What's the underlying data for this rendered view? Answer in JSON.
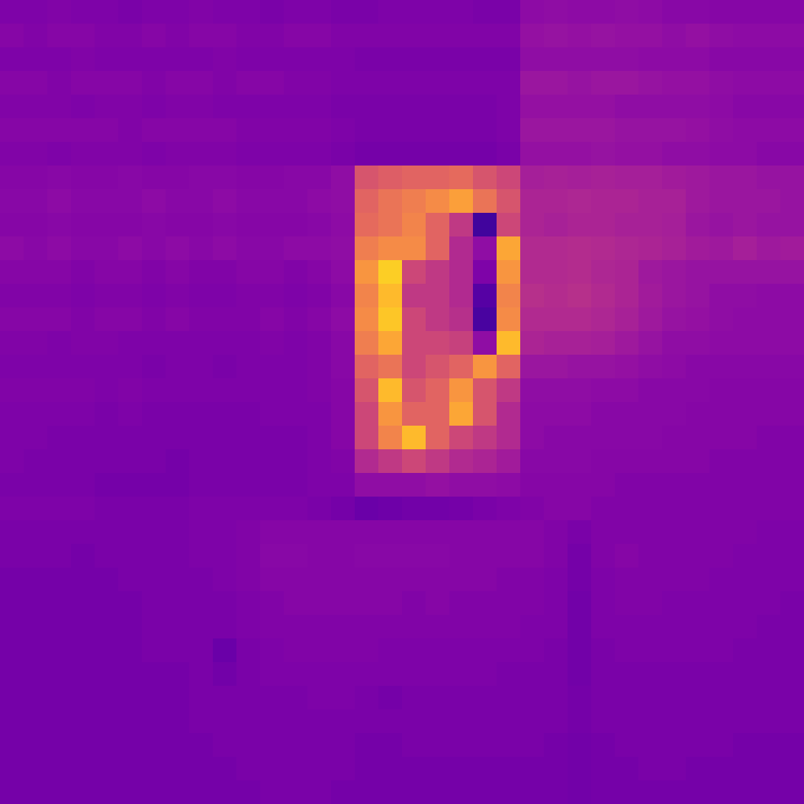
{
  "chart_data": {
    "type": "heatmap",
    "color": "plasma",
    "tick_labels": false,
    "zlim": [
      0,
      1
    ],
    "cells": [
      [
        0.25,
        0.25,
        0.26,
        0.25,
        0.25,
        0.24,
        0.25,
        0.25,
        0.26,
        0.25,
        0.25,
        0.24,
        0.25,
        0.25,
        0.24,
        0.24,
        0.25,
        0.25,
        0.25,
        0.25,
        0.24,
        0.24,
        0.29,
        0.3,
        0.29,
        0.29,
        0.3,
        0.29,
        0.28,
        0.28,
        0.27,
        0.27,
        0.27,
        0.27
      ],
      [
        0.27,
        0.26,
        0.27,
        0.27,
        0.26,
        0.26,
        0.27,
        0.26,
        0.27,
        0.27,
        0.26,
        0.26,
        0.27,
        0.27,
        0.26,
        0.26,
        0.26,
        0.26,
        0.26,
        0.26,
        0.26,
        0.26,
        0.31,
        0.32,
        0.31,
        0.32,
        0.31,
        0.31,
        0.3,
        0.31,
        0.3,
        0.29,
        0.29,
        0.29
      ],
      [
        0.25,
        0.25,
        0.25,
        0.26,
        0.25,
        0.25,
        0.25,
        0.25,
        0.25,
        0.26,
        0.25,
        0.25,
        0.25,
        0.25,
        0.25,
        0.24,
        0.24,
        0.24,
        0.24,
        0.24,
        0.24,
        0.24,
        0.3,
        0.3,
        0.3,
        0.3,
        0.3,
        0.29,
        0.29,
        0.29,
        0.28,
        0.28,
        0.28,
        0.28
      ],
      [
        0.27,
        0.27,
        0.26,
        0.27,
        0.27,
        0.27,
        0.26,
        0.27,
        0.27,
        0.26,
        0.27,
        0.27,
        0.26,
        0.26,
        0.25,
        0.25,
        0.25,
        0.25,
        0.25,
        0.25,
        0.25,
        0.25,
        0.33,
        0.33,
        0.32,
        0.33,
        0.33,
        0.32,
        0.31,
        0.31,
        0.3,
        0.29,
        0.29,
        0.29
      ],
      [
        0.26,
        0.26,
        0.26,
        0.25,
        0.26,
        0.26,
        0.25,
        0.26,
        0.26,
        0.25,
        0.25,
        0.25,
        0.25,
        0.25,
        0.24,
        0.24,
        0.24,
        0.24,
        0.24,
        0.24,
        0.24,
        0.25,
        0.31,
        0.31,
        0.31,
        0.31,
        0.3,
        0.3,
        0.3,
        0.3,
        0.29,
        0.28,
        0.28,
        0.28
      ],
      [
        0.27,
        0.27,
        0.27,
        0.27,
        0.27,
        0.26,
        0.27,
        0.27,
        0.27,
        0.27,
        0.26,
        0.26,
        0.26,
        0.26,
        0.25,
        0.24,
        0.24,
        0.24,
        0.24,
        0.24,
        0.24,
        0.25,
        0.33,
        0.33,
        0.33,
        0.33,
        0.32,
        0.32,
        0.32,
        0.31,
        0.3,
        0.29,
        0.29,
        0.29
      ],
      [
        0.26,
        0.26,
        0.25,
        0.26,
        0.26,
        0.26,
        0.25,
        0.26,
        0.26,
        0.26,
        0.25,
        0.25,
        0.25,
        0.25,
        0.24,
        0.23,
        0.23,
        0.23,
        0.23,
        0.23,
        0.23,
        0.24,
        0.31,
        0.31,
        0.31,
        0.32,
        0.31,
        0.31,
        0.3,
        0.3,
        0.29,
        0.29,
        0.28,
        0.28
      ],
      [
        0.27,
        0.27,
        0.28,
        0.27,
        0.27,
        0.28,
        0.27,
        0.27,
        0.28,
        0.28,
        0.27,
        0.27,
        0.28,
        0.28,
        0.3,
        0.55,
        0.58,
        0.6,
        0.6,
        0.62,
        0.55,
        0.5,
        0.36,
        0.37,
        0.36,
        0.37,
        0.36,
        0.36,
        0.35,
        0.34,
        0.33,
        0.33,
        0.32,
        0.32
      ],
      [
        0.28,
        0.28,
        0.29,
        0.28,
        0.28,
        0.28,
        0.29,
        0.28,
        0.28,
        0.29,
        0.28,
        0.28,
        0.28,
        0.29,
        0.3,
        0.6,
        0.65,
        0.68,
        0.72,
        0.78,
        0.65,
        0.55,
        0.38,
        0.38,
        0.39,
        0.38,
        0.38,
        0.37,
        0.37,
        0.34,
        0.33,
        0.33,
        0.33,
        0.32
      ],
      [
        0.27,
        0.27,
        0.28,
        0.27,
        0.27,
        0.27,
        0.28,
        0.27,
        0.27,
        0.28,
        0.27,
        0.27,
        0.27,
        0.28,
        0.29,
        0.62,
        0.65,
        0.7,
        0.6,
        0.45,
        0.1,
        0.5,
        0.38,
        0.37,
        0.38,
        0.38,
        0.37,
        0.37,
        0.36,
        0.33,
        0.32,
        0.33,
        0.32,
        0.32
      ],
      [
        0.29,
        0.28,
        0.29,
        0.28,
        0.28,
        0.29,
        0.28,
        0.29,
        0.28,
        0.29,
        0.28,
        0.28,
        0.29,
        0.29,
        0.3,
        0.68,
        0.72,
        0.72,
        0.6,
        0.4,
        0.3,
        0.8,
        0.4,
        0.4,
        0.41,
        0.4,
        0.39,
        0.38,
        0.37,
        0.35,
        0.34,
        0.36,
        0.34,
        0.35
      ],
      [
        0.27,
        0.27,
        0.27,
        0.26,
        0.27,
        0.27,
        0.26,
        0.27,
        0.26,
        0.26,
        0.27,
        0.27,
        0.26,
        0.27,
        0.29,
        0.75,
        0.9,
        0.5,
        0.45,
        0.4,
        0.25,
        0.75,
        0.4,
        0.4,
        0.41,
        0.39,
        0.38,
        0.34,
        0.33,
        0.32,
        0.32,
        0.32,
        0.32,
        0.32
      ],
      [
        0.26,
        0.26,
        0.26,
        0.25,
        0.26,
        0.26,
        0.25,
        0.26,
        0.25,
        0.25,
        0.26,
        0.26,
        0.25,
        0.26,
        0.28,
        0.7,
        0.85,
        0.45,
        0.45,
        0.4,
        0.15,
        0.7,
        0.42,
        0.41,
        0.42,
        0.4,
        0.38,
        0.35,
        0.33,
        0.32,
        0.3,
        0.3,
        0.29,
        0.29
      ],
      [
        0.27,
        0.27,
        0.27,
        0.26,
        0.27,
        0.27,
        0.26,
        0.27,
        0.26,
        0.26,
        0.26,
        0.27,
        0.26,
        0.27,
        0.29,
        0.72,
        0.88,
        0.5,
        0.45,
        0.42,
        0.12,
        0.72,
        0.4,
        0.4,
        0.4,
        0.39,
        0.37,
        0.34,
        0.32,
        0.31,
        0.3,
        0.29,
        0.29,
        0.29
      ],
      [
        0.26,
        0.26,
        0.25,
        0.26,
        0.26,
        0.25,
        0.25,
        0.25,
        0.25,
        0.25,
        0.25,
        0.26,
        0.25,
        0.26,
        0.28,
        0.68,
        0.8,
        0.5,
        0.5,
        0.48,
        0.3,
        0.85,
        0.38,
        0.37,
        0.37,
        0.36,
        0.34,
        0.32,
        0.3,
        0.3,
        0.29,
        0.29,
        0.29,
        0.29
      ],
      [
        0.25,
        0.25,
        0.25,
        0.25,
        0.25,
        0.25,
        0.24,
        0.25,
        0.25,
        0.24,
        0.25,
        0.25,
        0.25,
        0.26,
        0.28,
        0.6,
        0.65,
        0.5,
        0.55,
        0.6,
        0.75,
        0.6,
        0.33,
        0.33,
        0.32,
        0.32,
        0.31,
        0.3,
        0.29,
        0.28,
        0.28,
        0.28,
        0.28,
        0.28
      ],
      [
        0.26,
        0.26,
        0.26,
        0.26,
        0.25,
        0.26,
        0.25,
        0.25,
        0.25,
        0.25,
        0.25,
        0.25,
        0.25,
        0.26,
        0.27,
        0.55,
        0.85,
        0.55,
        0.6,
        0.75,
        0.55,
        0.45,
        0.3,
        0.3,
        0.3,
        0.29,
        0.29,
        0.28,
        0.28,
        0.28,
        0.27,
        0.27,
        0.27,
        0.27
      ],
      [
        0.25,
        0.25,
        0.25,
        0.25,
        0.24,
        0.25,
        0.24,
        0.24,
        0.24,
        0.24,
        0.24,
        0.25,
        0.25,
        0.25,
        0.27,
        0.5,
        0.75,
        0.6,
        0.6,
        0.8,
        0.55,
        0.4,
        0.29,
        0.29,
        0.29,
        0.28,
        0.28,
        0.28,
        0.28,
        0.27,
        0.27,
        0.27,
        0.27,
        0.27
      ],
      [
        0.25,
        0.25,
        0.24,
        0.24,
        0.24,
        0.24,
        0.24,
        0.24,
        0.24,
        0.24,
        0.24,
        0.24,
        0.24,
        0.25,
        0.27,
        0.5,
        0.7,
        0.85,
        0.6,
        0.5,
        0.45,
        0.4,
        0.29,
        0.28,
        0.28,
        0.28,
        0.28,
        0.28,
        0.27,
        0.27,
        0.27,
        0.27,
        0.26,
        0.26
      ],
      [
        0.25,
        0.24,
        0.24,
        0.24,
        0.24,
        0.24,
        0.24,
        0.23,
        0.24,
        0.24,
        0.24,
        0.24,
        0.24,
        0.25,
        0.26,
        0.4,
        0.45,
        0.5,
        0.45,
        0.4,
        0.38,
        0.35,
        0.28,
        0.28,
        0.28,
        0.27,
        0.27,
        0.27,
        0.27,
        0.27,
        0.26,
        0.26,
        0.26,
        0.26
      ],
      [
        0.24,
        0.24,
        0.24,
        0.24,
        0.23,
        0.23,
        0.23,
        0.23,
        0.24,
        0.24,
        0.24,
        0.24,
        0.24,
        0.25,
        0.25,
        0.3,
        0.3,
        0.3,
        0.31,
        0.3,
        0.3,
        0.29,
        0.27,
        0.27,
        0.27,
        0.27,
        0.26,
        0.26,
        0.26,
        0.26,
        0.26,
        0.26,
        0.26,
        0.26
      ],
      [
        0.25,
        0.25,
        0.25,
        0.25,
        0.24,
        0.24,
        0.24,
        0.24,
        0.25,
        0.25,
        0.25,
        0.25,
        0.25,
        0.24,
        0.23,
        0.2,
        0.21,
        0.22,
        0.22,
        0.23,
        0.24,
        0.25,
        0.26,
        0.27,
        0.27,
        0.26,
        0.26,
        0.26,
        0.26,
        0.26,
        0.26,
        0.26,
        0.26,
        0.26
      ],
      [
        0.24,
        0.24,
        0.24,
        0.24,
        0.24,
        0.24,
        0.24,
        0.24,
        0.25,
        0.25,
        0.26,
        0.27,
        0.27,
        0.27,
        0.27,
        0.27,
        0.27,
        0.27,
        0.27,
        0.27,
        0.27,
        0.27,
        0.27,
        0.26,
        0.24,
        0.26,
        0.26,
        0.26,
        0.26,
        0.26,
        0.26,
        0.26,
        0.25,
        0.25
      ],
      [
        0.24,
        0.24,
        0.24,
        0.23,
        0.24,
        0.24,
        0.24,
        0.24,
        0.25,
        0.25,
        0.26,
        0.28,
        0.28,
        0.27,
        0.27,
        0.28,
        0.28,
        0.28,
        0.28,
        0.27,
        0.27,
        0.27,
        0.27,
        0.26,
        0.23,
        0.26,
        0.27,
        0.26,
        0.26,
        0.26,
        0.26,
        0.25,
        0.25,
        0.25
      ],
      [
        0.23,
        0.23,
        0.23,
        0.23,
        0.23,
        0.24,
        0.24,
        0.24,
        0.24,
        0.25,
        0.26,
        0.27,
        0.27,
        0.27,
        0.27,
        0.27,
        0.27,
        0.27,
        0.27,
        0.27,
        0.27,
        0.26,
        0.26,
        0.25,
        0.23,
        0.25,
        0.26,
        0.26,
        0.26,
        0.26,
        0.25,
        0.25,
        0.25,
        0.25
      ],
      [
        0.23,
        0.23,
        0.23,
        0.23,
        0.23,
        0.23,
        0.24,
        0.24,
        0.24,
        0.24,
        0.25,
        0.26,
        0.27,
        0.27,
        0.27,
        0.27,
        0.27,
        0.26,
        0.27,
        0.26,
        0.26,
        0.26,
        0.26,
        0.25,
        0.22,
        0.25,
        0.26,
        0.26,
        0.25,
        0.25,
        0.25,
        0.25,
        0.25,
        0.24
      ],
      [
        0.23,
        0.23,
        0.23,
        0.23,
        0.23,
        0.23,
        0.24,
        0.24,
        0.24,
        0.24,
        0.25,
        0.26,
        0.26,
        0.26,
        0.26,
        0.26,
        0.26,
        0.26,
        0.26,
        0.26,
        0.26,
        0.26,
        0.25,
        0.25,
        0.22,
        0.25,
        0.25,
        0.25,
        0.25,
        0.25,
        0.25,
        0.25,
        0.24,
        0.24
      ],
      [
        0.23,
        0.23,
        0.23,
        0.23,
        0.23,
        0.23,
        0.24,
        0.24,
        0.24,
        0.2,
        0.24,
        0.25,
        0.26,
        0.26,
        0.26,
        0.26,
        0.25,
        0.25,
        0.25,
        0.25,
        0.25,
        0.25,
        0.25,
        0.24,
        0.22,
        0.24,
        0.25,
        0.25,
        0.25,
        0.25,
        0.25,
        0.24,
        0.24,
        0.24
      ],
      [
        0.23,
        0.23,
        0.23,
        0.23,
        0.23,
        0.23,
        0.23,
        0.23,
        0.24,
        0.22,
        0.24,
        0.25,
        0.25,
        0.25,
        0.25,
        0.25,
        0.25,
        0.25,
        0.25,
        0.25,
        0.25,
        0.24,
        0.24,
        0.24,
        0.22,
        0.24,
        0.24,
        0.24,
        0.24,
        0.24,
        0.24,
        0.24,
        0.24,
        0.24
      ],
      [
        0.23,
        0.23,
        0.23,
        0.23,
        0.23,
        0.23,
        0.23,
        0.23,
        0.24,
        0.24,
        0.24,
        0.24,
        0.24,
        0.25,
        0.25,
        0.24,
        0.23,
        0.24,
        0.24,
        0.24,
        0.24,
        0.24,
        0.24,
        0.24,
        0.23,
        0.24,
        0.24,
        0.24,
        0.24,
        0.24,
        0.24,
        0.24,
        0.24,
        0.24
      ],
      [
        0.23,
        0.23,
        0.23,
        0.23,
        0.23,
        0.23,
        0.23,
        0.23,
        0.24,
        0.24,
        0.24,
        0.24,
        0.24,
        0.24,
        0.24,
        0.24,
        0.24,
        0.24,
        0.24,
        0.24,
        0.24,
        0.24,
        0.24,
        0.24,
        0.23,
        0.24,
        0.24,
        0.24,
        0.24,
        0.24,
        0.24,
        0.24,
        0.24,
        0.24
      ],
      [
        0.23,
        0.23,
        0.23,
        0.23,
        0.23,
        0.23,
        0.23,
        0.23,
        0.23,
        0.24,
        0.24,
        0.24,
        0.24,
        0.24,
        0.24,
        0.23,
        0.23,
        0.24,
        0.24,
        0.24,
        0.24,
        0.24,
        0.24,
        0.23,
        0.22,
        0.23,
        0.24,
        0.24,
        0.24,
        0.24,
        0.24,
        0.23,
        0.23,
        0.23
      ],
      [
        0.23,
        0.23,
        0.23,
        0.23,
        0.23,
        0.23,
        0.23,
        0.23,
        0.23,
        0.23,
        0.24,
        0.24,
        0.24,
        0.24,
        0.24,
        0.23,
        0.23,
        0.23,
        0.23,
        0.23,
        0.23,
        0.23,
        0.23,
        0.23,
        0.22,
        0.23,
        0.23,
        0.24,
        0.24,
        0.23,
        0.23,
        0.23,
        0.23,
        0.23
      ],
      [
        0.23,
        0.23,
        0.23,
        0.23,
        0.23,
        0.23,
        0.23,
        0.23,
        0.23,
        0.23,
        0.23,
        0.24,
        0.24,
        0.24,
        0.23,
        0.23,
        0.23,
        0.23,
        0.23,
        0.23,
        0.23,
        0.23,
        0.23,
        0.23,
        0.22,
        0.23,
        0.23,
        0.23,
        0.23,
        0.23,
        0.23,
        0.23,
        0.23,
        0.23
      ]
    ]
  }
}
